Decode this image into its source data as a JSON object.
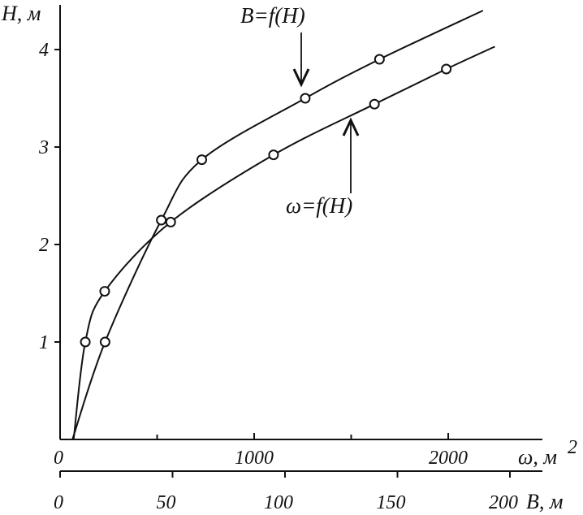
{
  "chart_data": {
    "type": "line",
    "title": "",
    "ylabel": "H, м",
    "ylim": [
      0,
      4.4
    ],
    "yticks": [
      "1",
      "2",
      "3",
      "4"
    ],
    "x_axes": [
      {
        "id": "omega",
        "label_symbol": "ω, м",
        "label_superscript": "2",
        "range": [
          0,
          2300
        ],
        "ticks": [
          "0",
          "1000",
          "2000"
        ],
        "tick_values": [
          0,
          1000,
          2000
        ],
        "minor_ticks": [
          500,
          1500
        ]
      },
      {
        "id": "B",
        "label": "B, м",
        "range": [
          0,
          230
        ],
        "ticks": [
          "0",
          "50",
          "100",
          "150",
          "200"
        ],
        "tick_values": [
          0,
          50,
          100,
          150,
          200
        ]
      }
    ],
    "series": [
      {
        "name": "B=f(H)",
        "x_axis": "B",
        "x": [
          5.5,
          20,
          45,
          63,
          109,
          142,
          188
        ],
        "y": [
          0,
          1.0,
          2.25,
          2.87,
          3.5,
          3.9,
          4.4
        ],
        "markers": [
          {
            "x": 20,
            "y": 1.0
          },
          {
            "x": 45,
            "y": 2.25
          },
          {
            "x": 63,
            "y": 2.87
          },
          {
            "x": 109,
            "y": 3.5
          },
          {
            "x": 142,
            "y": 3.9
          }
        ]
      },
      {
        "name": "ω=f(H)",
        "x_axis": "omega",
        "x": [
          70,
          130,
          230,
          570,
          1100,
          1620,
          1990,
          2240
        ],
        "y": [
          0,
          1.0,
          1.52,
          2.23,
          2.92,
          3.44,
          3.8,
          4.03
        ],
        "markers": [
          {
            "x": 130,
            "y": 1.0
          },
          {
            "x": 230,
            "y": 1.52
          },
          {
            "x": 570,
            "y": 2.23
          },
          {
            "x": 1100,
            "y": 2.92
          },
          {
            "x": 1620,
            "y": 3.44
          },
          {
            "x": 1990,
            "y": 3.8
          }
        ]
      }
    ]
  }
}
